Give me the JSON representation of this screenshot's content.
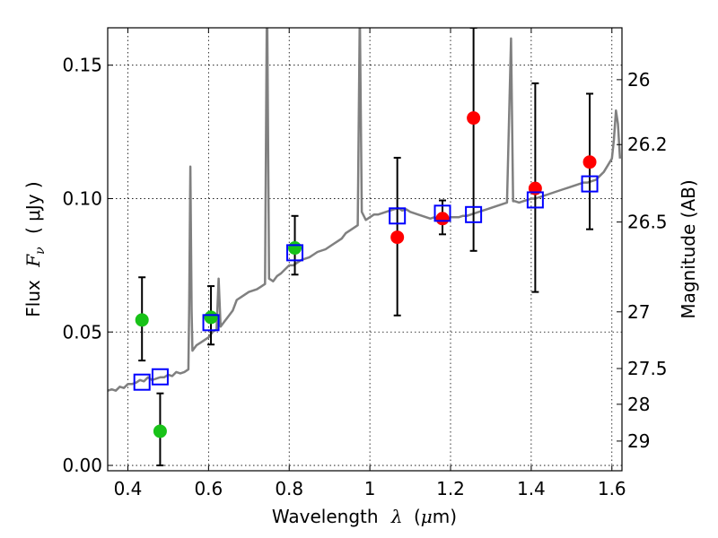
{
  "chart_data": {
    "type": "scatter",
    "xlabel": {
      "prefix": "Wavelength",
      "symbol": "λ",
      "unit_open": "(",
      "unit_mu": "μ",
      "unit_rest": "m)"
    },
    "ylabel": {
      "prefix": "Flux",
      "symbol": "F",
      "subscript": "ν",
      "unit": "( μJy )"
    },
    "y2label": "Magnitude (AB)",
    "xlim": [
      0.35,
      1.625
    ],
    "ylim": [
      -0.002,
      0.164
    ],
    "grid": true,
    "x_ticks": [
      {
        "value": 0.4,
        "label": "0.4"
      },
      {
        "value": 0.6,
        "label": "0.6"
      },
      {
        "value": 0.8,
        "label": "0.8"
      },
      {
        "value": 1.0,
        "label": "1"
      },
      {
        "value": 1.2,
        "label": "1.2"
      },
      {
        "value": 1.4,
        "label": "1.4"
      },
      {
        "value": 1.6,
        "label": "1.6"
      }
    ],
    "y_ticks": [
      {
        "value": 0.0,
        "label": "0.00"
      },
      {
        "value": 0.05,
        "label": "0.05"
      },
      {
        "value": 0.1,
        "label": "0.10"
      },
      {
        "value": 0.15,
        "label": "0.15"
      }
    ],
    "mag_ticks": [
      {
        "mag": 26,
        "label": "26"
      },
      {
        "mag": 26.2,
        "label": "26.2"
      },
      {
        "mag": 26.5,
        "label": "26.5"
      },
      {
        "mag": 27,
        "label": "27"
      },
      {
        "mag": 27.5,
        "label": "27.5"
      },
      {
        "mag": 28,
        "label": "28"
      },
      {
        "mag": 29,
        "label": "29"
      }
    ],
    "model_spectrum": {
      "color": "#808080",
      "points": [
        [
          0.35,
          0.028
        ],
        [
          0.36,
          0.0285
        ],
        [
          0.37,
          0.028
        ],
        [
          0.38,
          0.0295
        ],
        [
          0.39,
          0.029
        ],
        [
          0.4,
          0.0305
        ],
        [
          0.41,
          0.0305
        ],
        [
          0.42,
          0.031
        ],
        [
          0.43,
          0.032
        ],
        [
          0.44,
          0.0315
        ],
        [
          0.45,
          0.033
        ],
        [
          0.46,
          0.032
        ],
        [
          0.47,
          0.0325
        ],
        [
          0.48,
          0.033
        ],
        [
          0.49,
          0.033
        ],
        [
          0.5,
          0.034
        ],
        [
          0.51,
          0.0335
        ],
        [
          0.52,
          0.035
        ],
        [
          0.53,
          0.0345
        ],
        [
          0.54,
          0.035
        ],
        [
          0.55,
          0.036
        ],
        [
          0.552,
          0.06
        ],
        [
          0.555,
          0.112
        ],
        [
          0.558,
          0.058
        ],
        [
          0.56,
          0.043
        ],
        [
          0.57,
          0.045
        ],
        [
          0.58,
          0.046
        ],
        [
          0.59,
          0.047
        ],
        [
          0.6,
          0.048
        ],
        [
          0.61,
          0.05
        ],
        [
          0.62,
          0.051
        ],
        [
          0.625,
          0.07
        ],
        [
          0.63,
          0.052
        ],
        [
          0.64,
          0.054
        ],
        [
          0.65,
          0.056
        ],
        [
          0.66,
          0.058
        ],
        [
          0.67,
          0.062
        ],
        [
          0.68,
          0.063
        ],
        [
          0.69,
          0.064
        ],
        [
          0.7,
          0.065
        ],
        [
          0.71,
          0.0655
        ],
        [
          0.72,
          0.066
        ],
        [
          0.73,
          0.067
        ],
        [
          0.74,
          0.068
        ],
        [
          0.745,
          0.18
        ],
        [
          0.75,
          0.07
        ],
        [
          0.76,
          0.069
        ],
        [
          0.77,
          0.071
        ],
        [
          0.78,
          0.072
        ],
        [
          0.79,
          0.0735
        ],
        [
          0.8,
          0.075
        ],
        [
          0.81,
          0.075
        ],
        [
          0.82,
          0.076
        ],
        [
          0.83,
          0.077
        ],
        [
          0.84,
          0.0775
        ],
        [
          0.85,
          0.078
        ],
        [
          0.86,
          0.079
        ],
        [
          0.87,
          0.08
        ],
        [
          0.88,
          0.0805
        ],
        [
          0.89,
          0.081
        ],
        [
          0.9,
          0.082
        ],
        [
          0.91,
          0.083
        ],
        [
          0.92,
          0.084
        ],
        [
          0.93,
          0.085
        ],
        [
          0.94,
          0.087
        ],
        [
          0.95,
          0.088
        ],
        [
          0.96,
          0.089
        ],
        [
          0.97,
          0.09
        ],
        [
          0.975,
          0.17
        ],
        [
          0.98,
          0.095
        ],
        [
          0.99,
          0.092
        ],
        [
          1.0,
          0.093
        ],
        [
          1.01,
          0.094
        ],
        [
          1.02,
          0.094
        ],
        [
          1.03,
          0.0945
        ],
        [
          1.04,
          0.095
        ],
        [
          1.05,
          0.0955
        ],
        [
          1.06,
          0.096
        ],
        [
          1.07,
          0.0965
        ],
        [
          1.08,
          0.0955
        ],
        [
          1.09,
          0.096
        ],
        [
          1.1,
          0.095
        ],
        [
          1.11,
          0.0945
        ],
        [
          1.12,
          0.094
        ],
        [
          1.13,
          0.0935
        ],
        [
          1.14,
          0.093
        ],
        [
          1.15,
          0.0925
        ],
        [
          1.16,
          0.093
        ],
        [
          1.17,
          0.0925
        ],
        [
          1.18,
          0.093
        ],
        [
          1.19,
          0.0925
        ],
        [
          1.2,
          0.093
        ],
        [
          1.21,
          0.093
        ],
        [
          1.22,
          0.093
        ],
        [
          1.23,
          0.0935
        ],
        [
          1.24,
          0.0935
        ],
        [
          1.25,
          0.094
        ],
        [
          1.26,
          0.0945
        ],
        [
          1.27,
          0.095
        ],
        [
          1.28,
          0.0955
        ],
        [
          1.29,
          0.096
        ],
        [
          1.3,
          0.0965
        ],
        [
          1.31,
          0.097
        ],
        [
          1.32,
          0.0975
        ],
        [
          1.33,
          0.098
        ],
        [
          1.34,
          0.0985
        ],
        [
          1.35,
          0.16
        ],
        [
          1.355,
          0.099
        ],
        [
          1.36,
          0.099
        ],
        [
          1.37,
          0.0985
        ],
        [
          1.38,
          0.099
        ],
        [
          1.39,
          0.0995
        ],
        [
          1.4,
          0.1
        ],
        [
          1.41,
          0.1
        ],
        [
          1.42,
          0.1005
        ],
        [
          1.43,
          0.101
        ],
        [
          1.44,
          0.1015
        ],
        [
          1.45,
          0.102
        ],
        [
          1.46,
          0.1025
        ],
        [
          1.47,
          0.103
        ],
        [
          1.48,
          0.1035
        ],
        [
          1.49,
          0.104
        ],
        [
          1.5,
          0.1045
        ],
        [
          1.51,
          0.105
        ],
        [
          1.52,
          0.1055
        ],
        [
          1.53,
          0.106
        ],
        [
          1.54,
          0.106
        ],
        [
          1.55,
          0.1065
        ],
        [
          1.56,
          0.107
        ],
        [
          1.57,
          0.1085
        ],
        [
          1.58,
          0.11
        ],
        [
          1.59,
          0.1125
        ],
        [
          1.6,
          0.115
        ],
        [
          1.605,
          0.122
        ],
        [
          1.61,
          0.133
        ],
        [
          1.615,
          0.128
        ],
        [
          1.62,
          0.115
        ]
      ]
    },
    "series": [
      {
        "name": "observed_green",
        "color": "#18c218",
        "marker": "circle",
        "points": [
          {
            "x": 0.435,
            "y": 0.0545,
            "err_lo": 0.0393,
            "err_hi": 0.0705
          },
          {
            "x": 0.48,
            "y": 0.0128,
            "err_lo": 0.0,
            "err_hi": 0.027
          },
          {
            "x": 0.606,
            "y": 0.0555,
            "err_lo": 0.0453,
            "err_hi": 0.0672
          },
          {
            "x": 0.814,
            "y": 0.0815,
            "err_lo": 0.0715,
            "err_hi": 0.0935
          }
        ]
      },
      {
        "name": "observed_red",
        "color": "#ff0000",
        "marker": "circle",
        "points": [
          {
            "x": 1.068,
            "y": 0.0855,
            "err_lo": 0.0562,
            "err_hi": 0.1153
          },
          {
            "x": 1.18,
            "y": 0.0925,
            "err_lo": 0.0866,
            "err_hi": 0.0993
          },
          {
            "x": 1.257,
            "y": 0.1302,
            "err_lo": 0.0804,
            "err_hi": 0.164
          },
          {
            "x": 1.41,
            "y": 0.1038,
            "err_lo": 0.065,
            "err_hi": 0.1432
          },
          {
            "x": 1.545,
            "y": 0.1137,
            "err_lo": 0.0885,
            "err_hi": 0.1393
          }
        ]
      },
      {
        "name": "model_photometry",
        "color": "#0000ff",
        "marker": "open-square",
        "points": [
          {
            "x": 0.435,
            "y": 0.0312
          },
          {
            "x": 0.48,
            "y": 0.0332
          },
          {
            "x": 0.606,
            "y": 0.0535
          },
          {
            "x": 0.814,
            "y": 0.0797
          },
          {
            "x": 1.068,
            "y": 0.0935
          },
          {
            "x": 1.18,
            "y": 0.0945
          },
          {
            "x": 1.257,
            "y": 0.094
          },
          {
            "x": 1.41,
            "y": 0.0995
          },
          {
            "x": 1.545,
            "y": 0.1055
          }
        ]
      }
    ]
  }
}
